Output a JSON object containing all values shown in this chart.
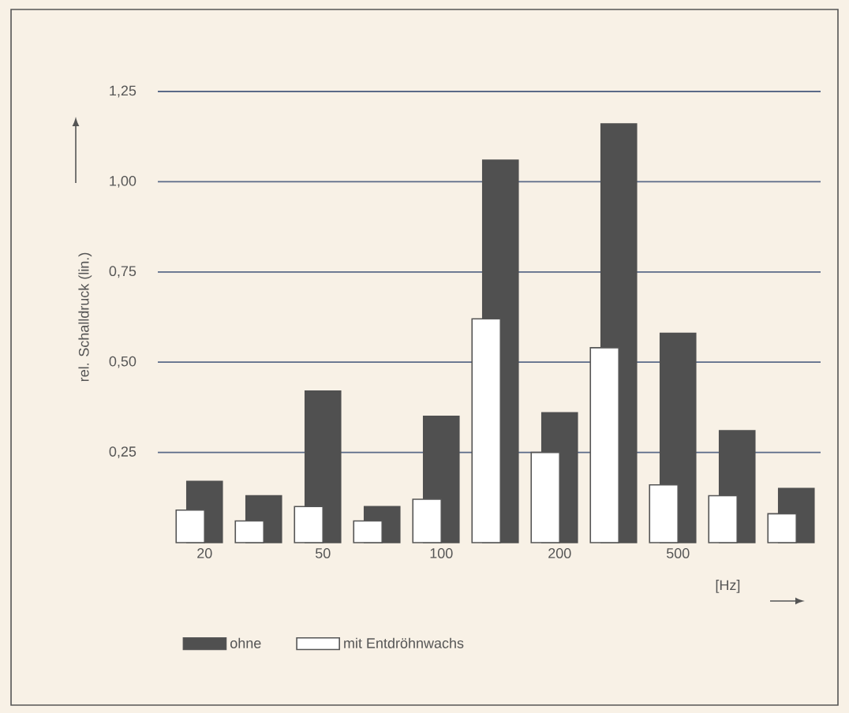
{
  "chart_data": {
    "type": "bar",
    "xlabel": "[Hz]",
    "ylabel": "rel. Schalldruck (lin.)",
    "categories": [
      "20",
      null,
      "50",
      null,
      "100",
      null,
      "200",
      null,
      "500",
      null,
      null
    ],
    "series": [
      {
        "name": "ohne",
        "color": "#505050",
        "values": [
          0.17,
          0.13,
          0.42,
          0.1,
          0.35,
          1.06,
          0.36,
          1.16,
          0.58,
          0.31,
          0.15
        ]
      },
      {
        "name": "mit Entdröhnwachs",
        "color": "#ffffff",
        "values": [
          0.09,
          0.06,
          0.1,
          0.06,
          0.12,
          0.62,
          0.25,
          0.54,
          0.16,
          0.13,
          0.08
        ]
      }
    ],
    "ylim": [
      0,
      1.25
    ],
    "yticks": [
      {
        "value": 0.25,
        "label": "0,25"
      },
      {
        "value": 0.5,
        "label": "0,50"
      },
      {
        "value": 0.75,
        "label": "0,75"
      },
      {
        "value": 1.0,
        "label": "1,00"
      },
      {
        "value": 1.25,
        "label": "1,25"
      }
    ],
    "grid": "y",
    "legend": "bottom"
  }
}
